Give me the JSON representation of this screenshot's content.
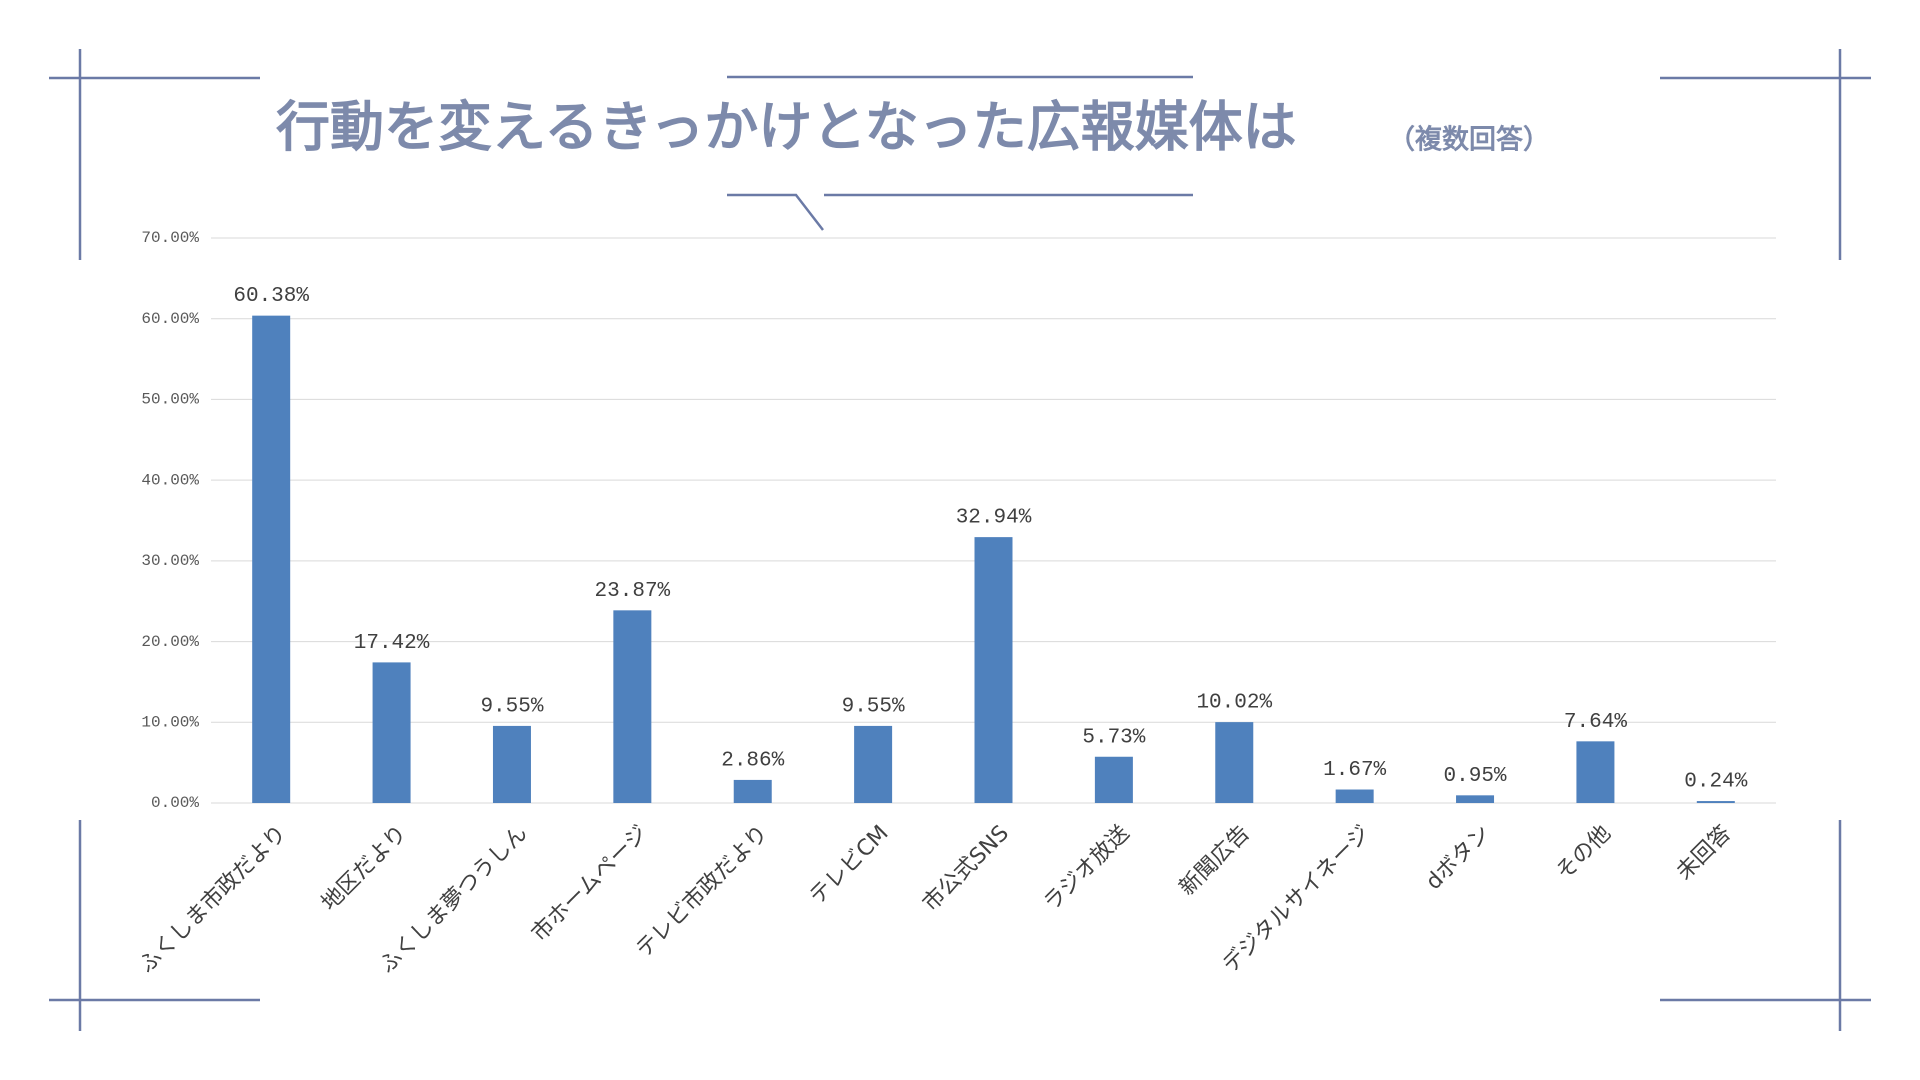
{
  "chart_data": {
    "type": "bar",
    "title": "行動を変えるきっかけとなった広報媒体は",
    "subtitle": "（複数回答）",
    "categories": [
      "ふくしま市政だより",
      "地区だより",
      "ふくしま夢つうしん",
      "市ホームページ",
      "テレビ市政だより",
      "テレビCM",
      "市公式SNS",
      "ラジオ放送",
      "新聞広告",
      "デジタルサイネージ",
      "dボタン",
      "その他",
      "未回答"
    ],
    "values": [
      60.38,
      17.42,
      9.55,
      23.87,
      2.86,
      9.55,
      32.94,
      5.73,
      10.02,
      1.67,
      0.95,
      7.64,
      0.24
    ],
    "value_labels": [
      "60.38%",
      "17.42%",
      "9.55%",
      "23.87%",
      "2.86%",
      "9.55%",
      "32.94%",
      "5.73%",
      "10.02%",
      "1.67%",
      "0.95%",
      "7.64%",
      "0.24%"
    ],
    "color": "#4f81bd",
    "ylim": [
      0,
      70
    ],
    "yticks": [
      {
        "value": 0,
        "label": "0.00%"
      },
      {
        "value": 10,
        "label": "10.00%"
      },
      {
        "value": 20,
        "label": "20.00%"
      },
      {
        "value": 30,
        "label": "30.00%"
      },
      {
        "value": 40,
        "label": "40.00%"
      },
      {
        "value": 50,
        "label": "50.00%"
      },
      {
        "value": 60,
        "label": "60.00%"
      },
      {
        "value": 70,
        "label": "70.00%"
      }
    ],
    "grid": true
  }
}
